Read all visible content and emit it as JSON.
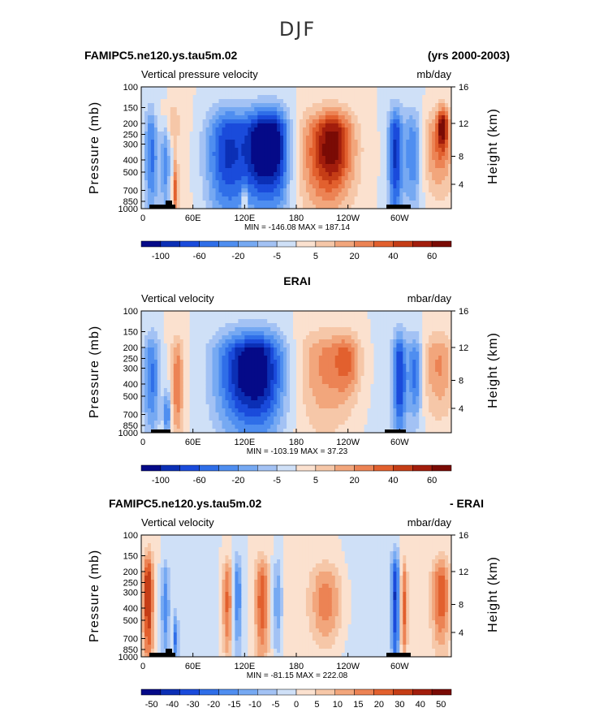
{
  "figure_title": "DJF",
  "chart_data": [
    {
      "type": "heatmap",
      "left_title": "FAMIPC5.ne120.ys.tau5m.02",
      "right_title": "(yrs 2000-2003)",
      "center_title": "",
      "variable": "Vertical pressure velocity",
      "units": "mb/day",
      "ylabel": "Pressure (mb)",
      "y2label": "Height (km)",
      "x_ticks": [
        "0",
        "60E",
        "120E",
        "180",
        "120W",
        "60W"
      ],
      "y_ticks": [
        "100",
        "150",
        "200",
        "250",
        "300",
        "400",
        "500",
        "700",
        "850",
        "1000"
      ],
      "y2_ticks": [
        "16",
        "12",
        "8",
        "4"
      ],
      "stats": "MIN = -146.08   MAX = 187.14",
      "min": -146.08,
      "max": 187.14,
      "colorbar_labels": [
        "-100",
        "-60",
        "-20",
        "-5",
        "5",
        "20",
        "40",
        "60"
      ],
      "colors": [
        "#050a88",
        "#0b2fb5",
        "#1a4bdb",
        "#2f6ee8",
        "#4f8ef0",
        "#76a9f2",
        "#a3c2f4",
        "#cfe0f7",
        "#fbe1cf",
        "#f6c7a8",
        "#f2a67c",
        "#ec8354",
        "#e2602e",
        "#c53d16",
        "#a21d0c",
        "#7a0b05"
      ],
      "blobs": [
        {
          "lon": 12,
          "lev": 0.55,
          "w": 8,
          "h": 0.55,
          "v": -3
        },
        {
          "lon": 28,
          "lev": 0.6,
          "w": 6,
          "h": 0.5,
          "v": -2.5
        },
        {
          "lon": 40,
          "lev": 0.85,
          "w": 3,
          "h": 0.25,
          "v": 3
        },
        {
          "lon": 32,
          "lev": 0.25,
          "w": 14,
          "h": 0.2,
          "v": 1.5
        },
        {
          "lon": 100,
          "lev": 0.55,
          "w": 25,
          "h": 0.55,
          "v": -4
        },
        {
          "lon": 140,
          "lev": 0.5,
          "w": 20,
          "h": 0.45,
          "v": -5
        },
        {
          "lon": 160,
          "lev": 0.5,
          "w": 15,
          "h": 0.5,
          "v": -3
        },
        {
          "lon": 120,
          "lev": 0.92,
          "w": 2,
          "h": 0.12,
          "v": 4
        },
        {
          "lon": 215,
          "lev": 0.55,
          "w": 30,
          "h": 0.45,
          "v": 3.5
        },
        {
          "lon": 225,
          "lev": 0.45,
          "w": 18,
          "h": 0.3,
          "v": 2
        },
        {
          "lon": 295,
          "lev": 0.55,
          "w": 8,
          "h": 0.6,
          "v": -4
        },
        {
          "lon": 315,
          "lev": 0.55,
          "w": 10,
          "h": 0.45,
          "v": -2.5
        },
        {
          "lon": 345,
          "lev": 0.5,
          "w": 18,
          "h": 0.4,
          "v": 2.5
        },
        {
          "lon": 350,
          "lev": 0.3,
          "w": 6,
          "h": 0.2,
          "v": 4
        }
      ],
      "background": 0.4
    },
    {
      "type": "heatmap",
      "left_title": "",
      "right_title": "",
      "center_title": "ERAI",
      "variable": "Vertical velocity",
      "units": "mbar/day",
      "ylabel": "Pressure (mb)",
      "y2label": "Height (km)",
      "x_ticks": [
        "0",
        "60E",
        "120E",
        "180",
        "120W",
        "60W"
      ],
      "y_ticks": [
        "100",
        "150",
        "200",
        "250",
        "300",
        "400",
        "500",
        "700",
        "850",
        "1000"
      ],
      "y2_ticks": [
        "16",
        "12",
        "8",
        "4"
      ],
      "stats": "MIN = -103.19   MAX =  37.23",
      "min": -103.19,
      "max": 37.23,
      "colorbar_labels": [
        "-100",
        "-60",
        "-20",
        "-5",
        "5",
        "20",
        "40",
        "60"
      ],
      "colors": [
        "#050a88",
        "#0b2fb5",
        "#1a4bdb",
        "#2f6ee8",
        "#4f8ef0",
        "#76a9f2",
        "#a3c2f4",
        "#cfe0f7",
        "#fbe1cf",
        "#f6c7a8",
        "#f2a67c",
        "#ec8354",
        "#e2602e",
        "#c53d16",
        "#a21d0c",
        "#7a0b05"
      ],
      "blobs": [
        {
          "lon": 12,
          "lev": 0.55,
          "w": 10,
          "h": 0.5,
          "v": -3
        },
        {
          "lon": 42,
          "lev": 0.6,
          "w": 7,
          "h": 0.45,
          "v": 2.5
        },
        {
          "lon": 30,
          "lev": 0.85,
          "w": 4,
          "h": 0.2,
          "v": -3
        },
        {
          "lon": 115,
          "lev": 0.5,
          "w": 30,
          "h": 0.5,
          "v": -4
        },
        {
          "lon": 145,
          "lev": 0.5,
          "w": 25,
          "h": 0.5,
          "v": -3.5
        },
        {
          "lon": 215,
          "lev": 0.45,
          "w": 30,
          "h": 0.5,
          "v": 2
        },
        {
          "lon": 240,
          "lev": 0.4,
          "w": 15,
          "h": 0.3,
          "v": 2
        },
        {
          "lon": 300,
          "lev": 0.55,
          "w": 8,
          "h": 0.5,
          "v": -4
        },
        {
          "lon": 318,
          "lev": 0.5,
          "w": 8,
          "h": 0.4,
          "v": -3
        },
        {
          "lon": 345,
          "lev": 0.45,
          "w": 18,
          "h": 0.4,
          "v": 2
        }
      ],
      "background": 0.3
    },
    {
      "type": "heatmap",
      "left_title": "FAMIPC5.ne120.ys.tau5m.02",
      "right_title": "- ERAI",
      "center_title": "",
      "variable": "Vertical velocity",
      "units": "mbar/day",
      "ylabel": "Pressure (mb)",
      "y2label": "Height (km)",
      "x_ticks": [
        "0",
        "60E",
        "120E",
        "180",
        "120W",
        "60W"
      ],
      "y_ticks": [
        "100",
        "150",
        "200",
        "250",
        "300",
        "400",
        "500",
        "700",
        "850",
        "1000"
      ],
      "y2_ticks": [
        "16",
        "12",
        "8",
        "4"
      ],
      "stats": "MIN = -81.15   MAX = 222.08",
      "min": -81.15,
      "max": 222.08,
      "colorbar_labels": [
        "-50",
        "-40",
        "-30",
        "-20",
        "-15",
        "-10",
        "-5",
        "0",
        "5",
        "10",
        "15",
        "20",
        "30",
        "40",
        "50"
      ],
      "colors": [
        "#050a88",
        "#0b2fb5",
        "#1a4bdb",
        "#2f6ee8",
        "#4f8ef0",
        "#76a9f2",
        "#a3c2f4",
        "#cfe0f7",
        "#fbe1cf",
        "#f6c7a8",
        "#f2a67c",
        "#ec8354",
        "#e2602e",
        "#c53d16",
        "#a21d0c",
        "#7a0b05"
      ],
      "blobs": [
        {
          "lon": 8,
          "lev": 0.5,
          "w": 6,
          "h": 0.6,
          "v": 4
        },
        {
          "lon": 28,
          "lev": 0.6,
          "w": 5,
          "h": 0.45,
          "v": -2.5
        },
        {
          "lon": 40,
          "lev": 0.85,
          "w": 3,
          "h": 0.2,
          "v": -3
        },
        {
          "lon": 100,
          "lev": 0.55,
          "w": 6,
          "h": 0.5,
          "v": 3
        },
        {
          "lon": 112,
          "lev": 0.5,
          "w": 5,
          "h": 0.5,
          "v": -2.5
        },
        {
          "lon": 140,
          "lev": 0.55,
          "w": 8,
          "h": 0.5,
          "v": 3
        },
        {
          "lon": 158,
          "lev": 0.55,
          "w": 6,
          "h": 0.5,
          "v": -2
        },
        {
          "lon": 215,
          "lev": 0.55,
          "w": 18,
          "h": 0.35,
          "v": 2.5
        },
        {
          "lon": 295,
          "lev": 0.5,
          "w": 5,
          "h": 0.7,
          "v": -4
        },
        {
          "lon": 305,
          "lev": 0.6,
          "w": 4,
          "h": 0.5,
          "v": 3
        },
        {
          "lon": 348,
          "lev": 0.5,
          "w": 10,
          "h": 0.4,
          "v": 3
        }
      ],
      "background": 0.5
    }
  ]
}
